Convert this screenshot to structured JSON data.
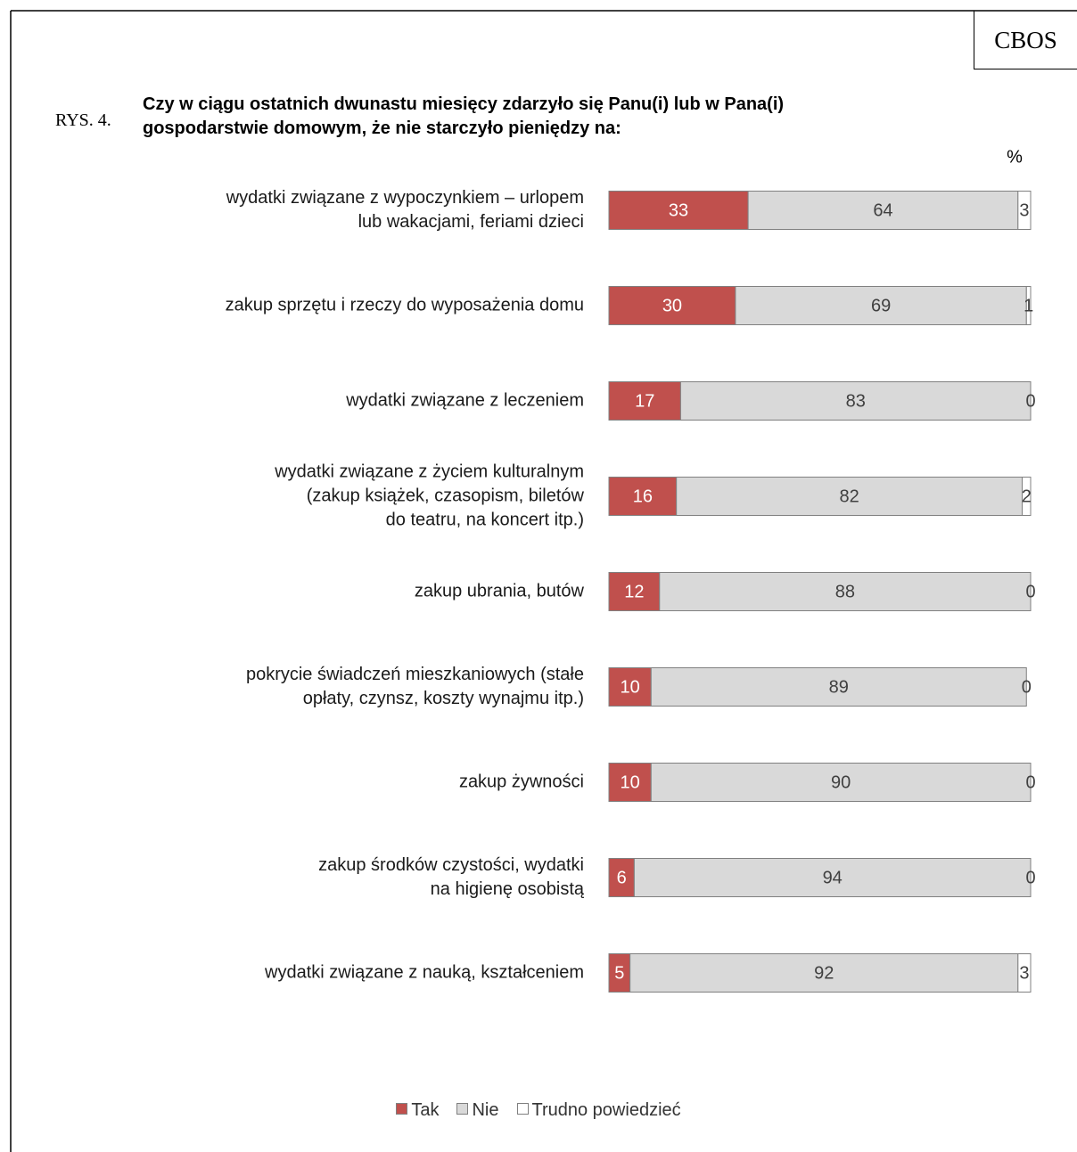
{
  "chart_data": {
    "type": "stacked-barh",
    "figure_label": "RYS. 4.",
    "source": "CBOS",
    "title": "Czy w ciągu ostatnich dwunastu miesięcy zdarzyło się Panu(i) lub w Pana(i)\ngospodarstwie domowym, że nie starczyło pieniędzy na:",
    "unit": "%",
    "categories": [
      "wydatki związane z wypoczynkiem – urlopem\nlub wakacjami, feriami dzieci",
      "zakup sprzętu i rzeczy do wyposażenia domu",
      "wydatki związane z leczeniem",
      "wydatki związane z życiem kulturalnym\n(zakup książek, czasopism, biletów\ndo teatru, na koncert itp.)",
      "zakup ubrania, butów",
      "pokrycie świadczeń mieszkaniowych (stałe\nopłaty, czynsz, koszty wynajmu itp.)",
      "zakup żywności",
      "zakup środków czystości, wydatki\nna higienę osobistą",
      "wydatki związane z nauką, kształceniem"
    ],
    "series": [
      {
        "name": "Tak",
        "color": "#c0504d",
        "text_color": "#ffffff",
        "values": [
          33,
          30,
          17,
          16,
          12,
          10,
          10,
          6,
          5
        ]
      },
      {
        "name": "Nie",
        "color": "#d9d9d9",
        "text_color": "#404040",
        "values": [
          64,
          69,
          83,
          82,
          88,
          89,
          90,
          94,
          92
        ]
      },
      {
        "name": "Trudno powiedzieć",
        "color": "#ffffff",
        "text_color": "#404040",
        "values": [
          3,
          1,
          0,
          2,
          0,
          0,
          0,
          0,
          3
        ]
      }
    ],
    "xlim": [
      0,
      100
    ],
    "legend": "bottom"
  }
}
